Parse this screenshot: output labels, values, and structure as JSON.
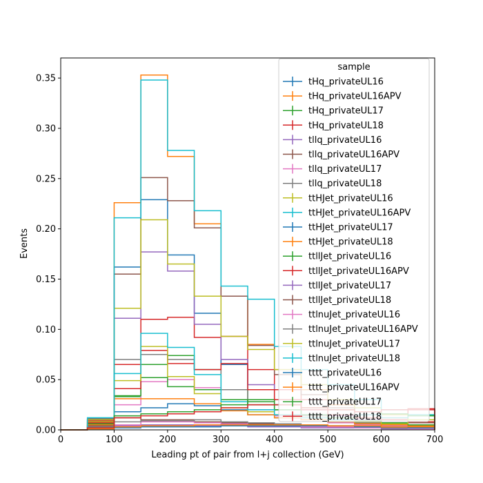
{
  "chart_data": {
    "type": "line",
    "xlabel": "Leading pt of pair from l+j collection (GeV)",
    "ylabel": "Events",
    "xlim": [
      0,
      700
    ],
    "ylim": [
      0,
      0.37
    ],
    "xticks": [
      "0",
      "100",
      "200",
      "300",
      "400",
      "500",
      "600",
      "700"
    ],
    "yticks": [
      "0.00",
      "0.05",
      "0.10",
      "0.15",
      "0.20",
      "0.25",
      "0.30",
      "0.35"
    ],
    "legend": {
      "title": "sample",
      "position": "top-right"
    },
    "bin_edges": [
      0,
      50,
      100,
      150,
      200,
      250,
      300,
      350,
      400,
      450,
      500,
      550,
      600,
      650,
      700
    ],
    "series": [
      {
        "name": "tHq_privateUL16",
        "color": "#1f77b4",
        "values": [
          0,
          0.01,
          0.162,
          0.229,
          0.174,
          0.116,
          0.065,
          0.04,
          0.025,
          0.015,
          0.01,
          0.006,
          0.004,
          0.003
        ]
      },
      {
        "name": "tHq_privateUL16APV",
        "color": "#ff7f0e",
        "values": [
          0,
          0.011,
          0.226,
          0.353,
          0.272,
          0.205,
          0.133,
          0.085,
          0.06,
          0.04,
          0.025,
          0.018,
          0.012,
          0.008
        ]
      },
      {
        "name": "tHq_privateUL17",
        "color": "#2ca02c",
        "values": [
          0,
          0.008,
          0.033,
          0.065,
          0.074,
          0.06,
          0.04,
          0.03,
          0.02,
          0.015,
          0.01,
          0.007,
          0.005,
          0.004
        ]
      },
      {
        "name": "tHq_privateUL18",
        "color": "#d62728",
        "values": [
          0,
          0.009,
          0.065,
          0.11,
          0.112,
          0.092,
          0.093,
          0.06,
          0.04,
          0.03,
          0.02,
          0.015,
          0.01,
          0.008
        ]
      },
      {
        "name": "tllq_privateUL16",
        "color": "#9467bd",
        "values": [
          0,
          0.01,
          0.111,
          0.177,
          0.158,
          0.105,
          0.07,
          0.045,
          0.03,
          0.02,
          0.014,
          0.01,
          0.007,
          0.005
        ]
      },
      {
        "name": "tllq_privateUL16APV",
        "color": "#8c564b",
        "values": [
          0,
          0.011,
          0.155,
          0.251,
          0.228,
          0.201,
          0.133,
          0.084,
          0.055,
          0.035,
          0.022,
          0.015,
          0.01,
          0.007
        ]
      },
      {
        "name": "tllq_privateUL17",
        "color": "#e377c2",
        "values": [
          0,
          0.004,
          0.025,
          0.048,
          0.05,
          0.042,
          0.03,
          0.02,
          0.014,
          0.01,
          0.007,
          0.005,
          0.004,
          0.003
        ]
      },
      {
        "name": "tllq_privateUL18",
        "color": "#7f7f7f",
        "values": [
          0,
          0.005,
          0.07,
          0.075,
          0.07,
          0.06,
          0.04,
          0.028,
          0.02,
          0.014,
          0.01,
          0.007,
          0.005,
          0.004
        ]
      },
      {
        "name": "ttHJet_privateUL16",
        "color": "#bcbd22",
        "values": [
          0,
          0.008,
          0.121,
          0.209,
          0.165,
          0.133,
          0.093,
          0.08,
          0.06,
          0.045,
          0.03,
          0.022,
          0.015,
          0.01
        ]
      },
      {
        "name": "ttHJet_privateUL16APV",
        "color": "#17becf",
        "values": [
          0,
          0.012,
          0.211,
          0.348,
          0.278,
          0.218,
          0.143,
          0.13,
          0.083,
          0.06,
          0.045,
          0.03,
          0.02,
          0.015
        ]
      },
      {
        "name": "ttHJet_privateUL17",
        "color": "#1f77b4",
        "values": [
          0,
          0.004,
          0.018,
          0.022,
          0.026,
          0.024,
          0.02,
          0.015,
          0.012,
          0.01,
          0.008,
          0.006,
          0.005,
          0.004
        ]
      },
      {
        "name": "ttHJet_privateUL18",
        "color": "#ff7f0e",
        "values": [
          0,
          0.005,
          0.031,
          0.031,
          0.031,
          0.026,
          0.019,
          0.015,
          0.012,
          0.01,
          0.008,
          0.006,
          0.005,
          0.004
        ]
      },
      {
        "name": "ttllJet_privateUL16",
        "color": "#2ca02c",
        "values": [
          0,
          0.006,
          0.034,
          0.052,
          0.043,
          0.04,
          0.03,
          0.025,
          0.02,
          0.015,
          0.012,
          0.009,
          0.007,
          0.005
        ]
      },
      {
        "name": "ttllJet_privateUL16APV",
        "color": "#d62728",
        "values": [
          0,
          0.007,
          0.041,
          0.079,
          0.066,
          0.06,
          0.066,
          0.04,
          0.03,
          0.02,
          0.015,
          0.012,
          0.01,
          0.02
        ]
      },
      {
        "name": "ttllJet_privateUL17",
        "color": "#9467bd",
        "values": [
          0,
          0.003,
          0.004,
          0.005,
          0.005,
          0.004,
          0.004,
          0.003,
          0.003,
          0.002,
          0.002,
          0.002,
          0.001,
          0.001
        ]
      },
      {
        "name": "ttllJet_privateUL18",
        "color": "#8c564b",
        "values": [
          0,
          0.004,
          0.012,
          0.01,
          0.01,
          0.008,
          0.007,
          0.006,
          0.005,
          0.004,
          0.003,
          0.003,
          0.002,
          0.002
        ]
      },
      {
        "name": "ttlnuJet_privateUL16",
        "color": "#e377c2",
        "values": [
          0,
          0.002,
          0.005,
          0.008,
          0.008,
          0.007,
          0.006,
          0.005,
          0.004,
          0.003,
          0.003,
          0.002,
          0.002,
          0.001
        ]
      },
      {
        "name": "ttlnuJet_privateUL16APV",
        "color": "#7f7f7f",
        "values": [
          0,
          0.003,
          0.008,
          0.009,
          0.009,
          0.01,
          0.008,
          0.007,
          0.006,
          0.005,
          0.004,
          0.003,
          0.002,
          0.002
        ]
      },
      {
        "name": "ttlnuJet_privateUL17",
        "color": "#bcbd22",
        "values": [
          0,
          0.01,
          0.049,
          0.083,
          0.053,
          0.036,
          0.022,
          0.018,
          0.015,
          0.012,
          0.01,
          0.008,
          0.006,
          0.015
        ]
      },
      {
        "name": "ttlnuJet_privateUL18",
        "color": "#17becf",
        "values": [
          0,
          0.012,
          0.056,
          0.096,
          0.082,
          0.055,
          0.028,
          0.02,
          0.015,
          0.012,
          0.01,
          0.015,
          0.012,
          0.015
        ]
      },
      {
        "name": "tttt_privateUL16",
        "color": "#1f77b4",
        "values": [
          0,
          0.001,
          0.002,
          0.003,
          0.003,
          0.003,
          0.004,
          0.004,
          0.004,
          0.004,
          0.004,
          0.003,
          0.003,
          0.002
        ]
      },
      {
        "name": "tttt_privateUL16APV",
        "color": "#ff7f0e",
        "values": [
          0,
          0.001,
          0.003,
          0.004,
          0.004,
          0.005,
          0.005,
          0.005,
          0.005,
          0.005,
          0.004,
          0.004,
          0.003,
          0.003
        ]
      },
      {
        "name": "tttt_privateUL17",
        "color": "#2ca02c",
        "values": [
          0,
          0.002,
          0.014,
          0.016,
          0.018,
          0.02,
          0.025,
          0.028,
          0.025,
          0.022,
          0.02,
          0.018,
          0.016,
          0.014
        ]
      },
      {
        "name": "tttt_privateUL18",
        "color": "#d62728",
        "values": [
          0,
          0.002,
          0.012,
          0.014,
          0.016,
          0.018,
          0.022,
          0.025,
          0.025,
          0.022,
          0.02,
          0.018,
          0.02,
          0.021
        ]
      }
    ]
  }
}
